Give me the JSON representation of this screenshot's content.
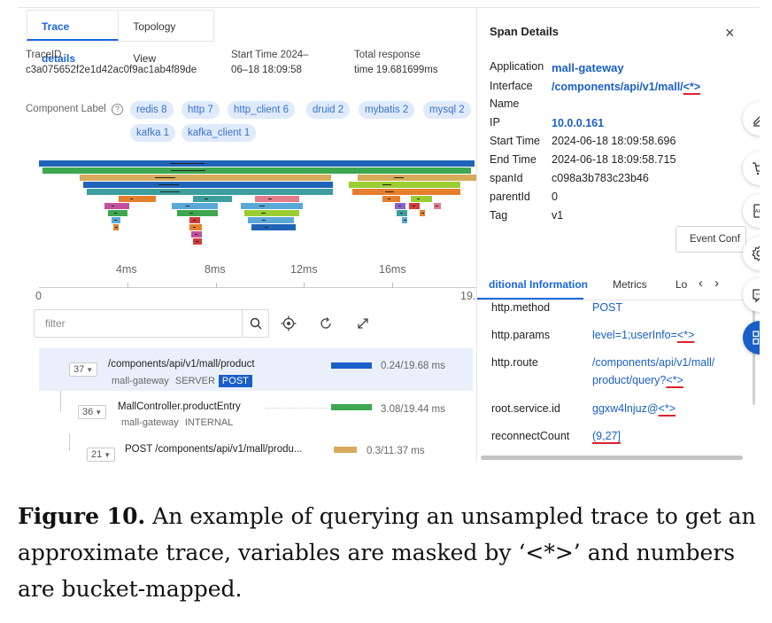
{
  "tabs": [
    "Trace details",
    "Topology View"
  ],
  "trace": {
    "id_label": "TraceID",
    "id_value": "c3a075652f2e1d42ac0f9ac1ab4f89de",
    "start_label": "Start Time 2024–",
    "start_value": "06–18 18:09:58",
    "resp_label": "Total response",
    "resp_value": "time 19.681699ms"
  },
  "component_label": "Component Label",
  "chips": [
    "redis 8",
    "http 7",
    "http_client 6",
    "druid 2",
    "mybatis 2",
    "mysql 2",
    "kafka 1",
    "kafka_client 1"
  ],
  "flame_colors": {
    "blue": "#1f63b8",
    "green": "#3fa650",
    "tan": "#d6aa5a",
    "lime": "#9acd32",
    "orange": "#e57f2e",
    "teal": "#3d9f9d",
    "magenta": "#c34fa0",
    "sky": "#5aa8d8",
    "pink": "#e57a8a",
    "red": "#d23b3b",
    "purple": "#8c63c8"
  },
  "axis": {
    "ticks": [
      "4ms",
      "8ms",
      "12ms",
      "16ms"
    ],
    "start": "0",
    "end": "19."
  },
  "filter": {
    "placeholder": "filter"
  },
  "tree": [
    {
      "badge": "37",
      "name": "/components/api/v1/mall/product",
      "service": "mall-gateway",
      "kind": "SERVER",
      "method": "POST",
      "time": "0.24/19.68 ms"
    },
    {
      "badge": "36",
      "name": "MallController.productEntry",
      "service": "mall-gateway",
      "kind": "INTERNAL",
      "time": "3.08/19.44 ms"
    },
    {
      "badge": "21",
      "name": "POST /components/api/v1/mall/produ...",
      "time": "0.3/11.37 ms"
    }
  ],
  "span": {
    "title": "Span Details",
    "application_label": "Application",
    "application_value": "mall-gateway",
    "interface_label": "Interface",
    "interface_label2": "Name",
    "interface_value": "/components/api/v1/mall/",
    "interface_mask": "<*>",
    "ip_label": "IP",
    "ip_value": "10.0.0.161",
    "start_label": "Start Time",
    "start_value": "2024-06-18 18:09:58.696",
    "end_label": "End Time",
    "end_value": "2024-06-18 18:09:58.715",
    "spanid_label": "spanId",
    "spanid_value": "c098a3b783c23b46",
    "parentid_label": "parentId",
    "parentid_value": "0",
    "tag_label": "Tag",
    "tag_value": "v1",
    "event_button": "Event Conf",
    "tabs": [
      "ditional Information",
      "Metrics",
      "Lo"
    ],
    "attrs": {
      "method_key": "http.method",
      "method_val": "POST",
      "params_key": "http.params",
      "params_val": "level=1;userInfo=",
      "params_mask": "<*>",
      "route_key": "http.route",
      "route_val1": "/components/api/v1/mall/",
      "route_val2": "product/query?",
      "route_mask": "<*>",
      "root_key": "root.service.id",
      "root_val": "ggxw4lnjuz@",
      "root_mask": "<*>",
      "reconnect_key": "reconnectCount",
      "reconnect_val": "(9,27]"
    }
  },
  "caption": {
    "label": "Figure 10.",
    "text": " An example of querying an unsampled trace to get an approximate trace, variables are masked by ‘<*>’ and numbers are bucket-mapped."
  }
}
